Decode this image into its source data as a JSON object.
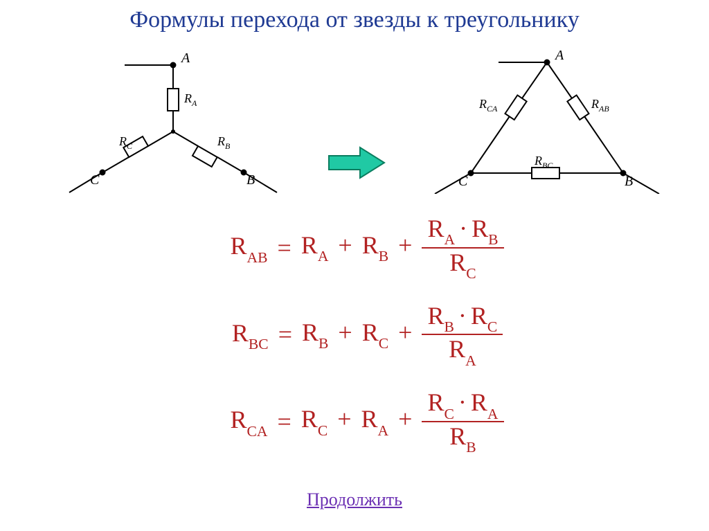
{
  "title": "Формулы перехода от звезды к треугольнику",
  "continue_label": "Продолжить",
  "colors": {
    "title": "#1f3a93",
    "formula": "#b22222",
    "link": "#6b2fb3",
    "diagram_stroke": "#000000",
    "arrow_fill": "#20c9a4",
    "arrow_stroke": "#0a7d5f",
    "background": "#ffffff"
  },
  "star_diagram": {
    "type": "circuit-star",
    "nodes": {
      "A": "A",
      "B": "B",
      "C": "C"
    },
    "labels": {
      "RA": "R",
      "RA_sub": "A",
      "RB": "R",
      "RB_sub": "B",
      "RC": "R",
      "RC_sub": "C"
    }
  },
  "delta_diagram": {
    "type": "circuit-delta",
    "nodes": {
      "A": "A",
      "B": "B",
      "C": "C"
    },
    "labels": {
      "RAB": "R",
      "RAB_sub": "AB",
      "RBC": "R",
      "RBC_sub": "BC",
      "RCA": "R",
      "RCA_sub": "CA"
    }
  },
  "formulas": [
    {
      "lhs": {
        "sym": "R",
        "sub": "AB"
      },
      "t1": {
        "sym": "R",
        "sub": "A"
      },
      "t2": {
        "sym": "R",
        "sub": "B"
      },
      "num1": {
        "sym": "R",
        "sub": "A"
      },
      "num2": {
        "sym": "R",
        "sub": "B"
      },
      "den": {
        "sym": "R",
        "sub": "C"
      }
    },
    {
      "lhs": {
        "sym": "R",
        "sub": "BC"
      },
      "t1": {
        "sym": "R",
        "sub": "B"
      },
      "t2": {
        "sym": "R",
        "sub": "C"
      },
      "num1": {
        "sym": "R",
        "sub": "B"
      },
      "num2": {
        "sym": "R",
        "sub": "C"
      },
      "den": {
        "sym": "R",
        "sub": "A"
      }
    },
    {
      "lhs": {
        "sym": "R",
        "sub": "CA"
      },
      "t1": {
        "sym": "R",
        "sub": "C"
      },
      "t2": {
        "sym": "R",
        "sub": "A"
      },
      "num1": {
        "sym": "R",
        "sub": "C"
      },
      "num2": {
        "sym": "R",
        "sub": "A"
      },
      "den": {
        "sym": "R",
        "sub": "B"
      }
    }
  ]
}
